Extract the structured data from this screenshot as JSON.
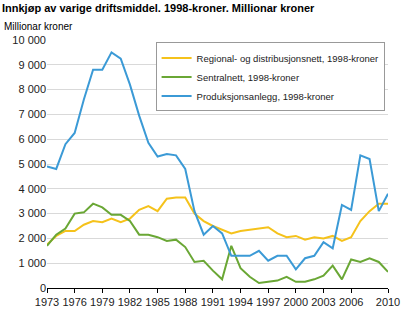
{
  "chart_data": {
    "type": "line",
    "title": "Innkjøp av varige driftsmiddel. 1998-kroner. Millionar kroner",
    "y_label": "Millionar kroner",
    "x": [
      1973,
      1974,
      1975,
      1976,
      1977,
      1978,
      1979,
      1980,
      1981,
      1982,
      1983,
      1984,
      1985,
      1986,
      1987,
      1988,
      1989,
      1990,
      1991,
      1992,
      1993,
      1994,
      1995,
      1996,
      1997,
      1998,
      1999,
      2000,
      2001,
      2002,
      2003,
      2004,
      2005,
      2006,
      2007,
      2008,
      2009,
      2010
    ],
    "series": [
      {
        "name": "Regional- og distribusjonsnett, 1998-kroner",
        "color": "#f5c21b",
        "values": [
          1750,
          2100,
          2300,
          2300,
          2550,
          2700,
          2650,
          2800,
          2650,
          2800,
          3150,
          3300,
          3100,
          3600,
          3650,
          3650,
          3000,
          2700,
          2500,
          2350,
          2200,
          2300,
          2350,
          2400,
          2450,
          2200,
          2050,
          2100,
          1950,
          2050,
          2000,
          2100,
          1900,
          2050,
          2700,
          3100,
          3400,
          3400
        ]
      },
      {
        "name": "Sentralnett, 1998-kroner",
        "color": "#6aa735",
        "values": [
          1700,
          2150,
          2400,
          3000,
          3050,
          3400,
          3250,
          2950,
          2950,
          2700,
          2150,
          2150,
          2050,
          1900,
          1950,
          1650,
          1050,
          1100,
          700,
          350,
          1700,
          800,
          450,
          200,
          250,
          300,
          450,
          250,
          250,
          350,
          500,
          900,
          350,
          1150,
          1050,
          1200,
          1050,
          650
        ]
      },
      {
        "name": "Produksjonsanlegg, 1998-kroner",
        "color": "#3b9ad6",
        "values": [
          4900,
          4800,
          5800,
          6250,
          7600,
          8800,
          8800,
          9500,
          9250,
          8200,
          6950,
          5850,
          5300,
          5400,
          5350,
          4800,
          3100,
          2150,
          2500,
          2200,
          1300,
          1300,
          1300,
          1500,
          1100,
          1300,
          1300,
          750,
          1200,
          1300,
          1850,
          1600,
          3350,
          3150,
          5350,
          5200,
          3100,
          3800
        ]
      }
    ],
    "xlim": [
      1973,
      2010
    ],
    "xticks": [
      1973,
      1976,
      1979,
      1982,
      1985,
      1988,
      1991,
      1994,
      1997,
      2000,
      2003,
      2006,
      2010
    ],
    "ylim": [
      0,
      10000
    ],
    "yticks": [
      0,
      {
        "value": 1000,
        "label": "1 000"
      },
      {
        "value": 2000,
        "label": "2 000"
      },
      {
        "value": 3000,
        "label": "3 000"
      },
      {
        "value": 4000,
        "label": "4 000"
      },
      {
        "value": 5000,
        "label": "5 000"
      },
      {
        "value": 6000,
        "label": "6 000"
      },
      {
        "value": 7000,
        "label": "7 000"
      },
      {
        "value": 8000,
        "label": "8 000"
      },
      {
        "value": 9000,
        "label": "9 000"
      },
      {
        "value": 10000,
        "label": "10 000"
      }
    ],
    "grid": true,
    "legend": "top right"
  }
}
